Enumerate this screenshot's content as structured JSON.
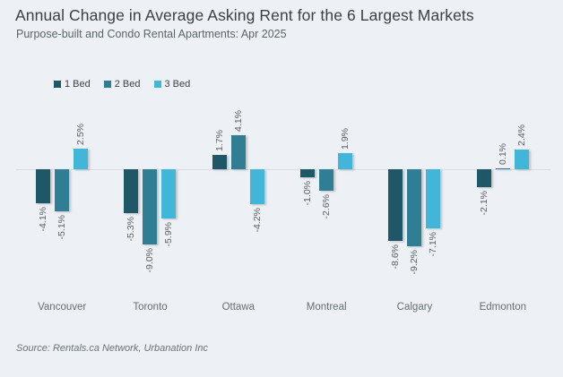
{
  "page": {
    "background": "#edf0f5"
  },
  "header": {
    "title": "Annual Change in Average Asking Rent for the 6 Largest Markets",
    "subtitle": "Purpose-built and Condo Rental Apartments: Apr 2025"
  },
  "footer": {
    "source": "Source: Rentals.ca Network, Urbanation Inc"
  },
  "chart_data": {
    "type": "bar",
    "title": "Annual Change in Average Asking Rent for the 6 Largest Markets",
    "subtitle": "Purpose-built and Condo Rental Apartments: Apr 2025",
    "categories": [
      "Vancouver",
      "Toronto",
      "Ottawa",
      "Montreal",
      "Calgary",
      "Edmonton"
    ],
    "series": [
      {
        "name": "1 Bed",
        "color": "#1e5765",
        "values": [
          -4.1,
          -5.3,
          1.7,
          -1.0,
          -8.6,
          -2.1
        ],
        "labels": [
          "-4.1%",
          "-5.3%",
          "1.7%",
          "-1.0%",
          "-8.6%",
          "-2.1%"
        ]
      },
      {
        "name": "2 Bed",
        "color": "#2f7e93",
        "values": [
          -5.1,
          -9.0,
          4.1,
          -2.6,
          -9.2,
          0.1
        ],
        "labels": [
          "-5.1%",
          "-9.0%",
          "4.1%",
          "-2.6%",
          "-9.2%",
          "0.1%"
        ]
      },
      {
        "name": "3 Bed",
        "color": "#41b6d9",
        "values": [
          2.5,
          -5.9,
          -4.2,
          1.9,
          -7.1,
          2.4
        ],
        "labels": [
          "2.5%",
          "-5.9%",
          "-4.2%",
          "1.9%",
          "-7.1%",
          "2.4%"
        ]
      }
    ],
    "xlabel": "",
    "ylabel": "",
    "ylim": [
      -10,
      5
    ],
    "grid": false,
    "axis_ticks_visible": false,
    "baseline": 0,
    "value_suffix": "%",
    "legend_position": "top-left"
  }
}
